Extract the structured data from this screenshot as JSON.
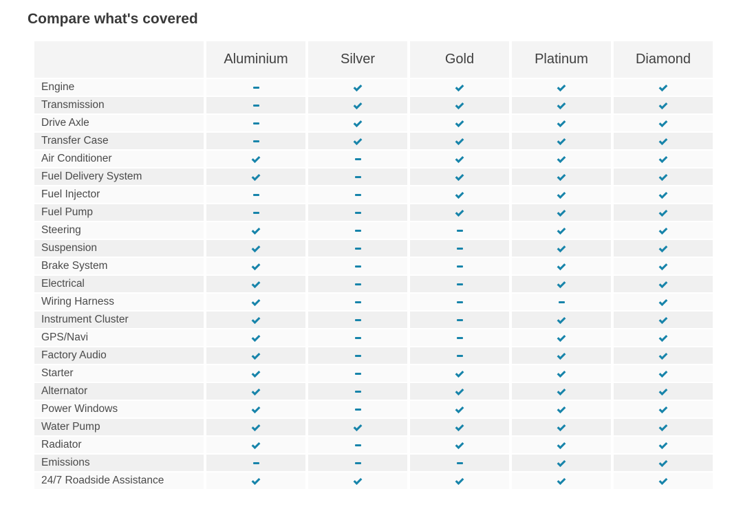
{
  "page": {
    "title": "Compare what's covered"
  },
  "colors": {
    "accent": "#1784aa",
    "row_light": "#fafafa",
    "row_dark": "#f0f0f0",
    "header_bg": "#f4f4f4"
  },
  "table": {
    "plans": [
      "Aluminium",
      "Silver",
      "Gold",
      "Platinum",
      "Diamond"
    ],
    "legend": {
      "check": "covered",
      "dash": "not covered"
    },
    "rows": [
      {
        "label": "Engine",
        "values": [
          "dash",
          "check",
          "check",
          "check",
          "check"
        ]
      },
      {
        "label": "Transmission",
        "values": [
          "dash",
          "check",
          "check",
          "check",
          "check"
        ]
      },
      {
        "label": "Drive Axle",
        "values": [
          "dash",
          "check",
          "check",
          "check",
          "check"
        ]
      },
      {
        "label": "Transfer Case",
        "values": [
          "dash",
          "check",
          "check",
          "check",
          "check"
        ]
      },
      {
        "label": "Air Conditioner",
        "values": [
          "check",
          "dash",
          "check",
          "check",
          "check"
        ]
      },
      {
        "label": "Fuel Delivery System",
        "values": [
          "check",
          "dash",
          "check",
          "check",
          "check"
        ]
      },
      {
        "label": "Fuel Injector",
        "values": [
          "dash",
          "dash",
          "check",
          "check",
          "check"
        ]
      },
      {
        "label": "Fuel Pump",
        "values": [
          "dash",
          "dash",
          "check",
          "check",
          "check"
        ]
      },
      {
        "label": "Steering",
        "values": [
          "check",
          "dash",
          "dash",
          "check",
          "check"
        ]
      },
      {
        "label": "Suspension",
        "values": [
          "check",
          "dash",
          "dash",
          "check",
          "check"
        ]
      },
      {
        "label": "Brake System",
        "values": [
          "check",
          "dash",
          "dash",
          "check",
          "check"
        ]
      },
      {
        "label": "Electrical",
        "values": [
          "check",
          "dash",
          "dash",
          "check",
          "check"
        ]
      },
      {
        "label": "Wiring Harness",
        "values": [
          "check",
          "dash",
          "dash",
          "dash",
          "check"
        ]
      },
      {
        "label": "Instrument Cluster",
        "values": [
          "check",
          "dash",
          "dash",
          "check",
          "check"
        ]
      },
      {
        "label": "GPS/Navi",
        "values": [
          "check",
          "dash",
          "dash",
          "check",
          "check"
        ]
      },
      {
        "label": "Factory Audio",
        "values": [
          "check",
          "dash",
          "dash",
          "check",
          "check"
        ]
      },
      {
        "label": "Starter",
        "values": [
          "check",
          "dash",
          "check",
          "check",
          "check"
        ]
      },
      {
        "label": "Alternator",
        "values": [
          "check",
          "dash",
          "check",
          "check",
          "check"
        ]
      },
      {
        "label": "Power Windows",
        "values": [
          "check",
          "dash",
          "check",
          "check",
          "check"
        ]
      },
      {
        "label": "Water Pump",
        "values": [
          "check",
          "check",
          "check",
          "check",
          "check"
        ]
      },
      {
        "label": "Radiator",
        "values": [
          "check",
          "dash",
          "check",
          "check",
          "check"
        ]
      },
      {
        "label": "Emissions",
        "values": [
          "dash",
          "dash",
          "dash",
          "check",
          "check"
        ]
      },
      {
        "label": "24/7 Roadside Assistance",
        "values": [
          "check",
          "check",
          "check",
          "check",
          "check"
        ]
      }
    ]
  }
}
